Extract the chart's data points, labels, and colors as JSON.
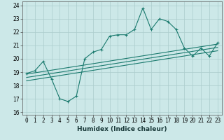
{
  "title": "",
  "xlabel": "Humidex (Indice chaleur)",
  "ylabel": "",
  "x_data": [
    0,
    1,
    2,
    3,
    4,
    5,
    6,
    7,
    8,
    9,
    10,
    11,
    12,
    13,
    14,
    15,
    16,
    17,
    18,
    19,
    20,
    21,
    22,
    23
  ],
  "y_data": [
    18.9,
    19.1,
    19.8,
    18.5,
    17.0,
    16.8,
    17.2,
    20.0,
    20.5,
    20.7,
    21.7,
    21.8,
    21.8,
    22.2,
    23.8,
    22.2,
    23.0,
    22.8,
    22.2,
    20.8,
    20.2,
    20.8,
    20.2,
    21.2
  ],
  "trend_lines": [
    {
      "x0": 0,
      "y0": 18.35,
      "x1": 23,
      "y1": 20.6
    },
    {
      "x0": 0,
      "y0": 18.6,
      "x1": 23,
      "y1": 20.85
    },
    {
      "x0": 0,
      "y0": 18.85,
      "x1": 23,
      "y1": 21.1
    }
  ],
  "line_color": "#1a7a6e",
  "bg_color": "#cce8e8",
  "grid_color": "#aacccc",
  "xlim": [
    -0.5,
    23.5
  ],
  "ylim": [
    15.8,
    24.3
  ],
  "yticks": [
    16,
    17,
    18,
    19,
    20,
    21,
    22,
    23,
    24
  ],
  "xticks": [
    0,
    1,
    2,
    3,
    4,
    5,
    6,
    7,
    8,
    9,
    10,
    11,
    12,
    13,
    14,
    15,
    16,
    17,
    18,
    19,
    20,
    21,
    22,
    23
  ],
  "label_fontsize": 6.5,
  "tick_fontsize": 5.5
}
